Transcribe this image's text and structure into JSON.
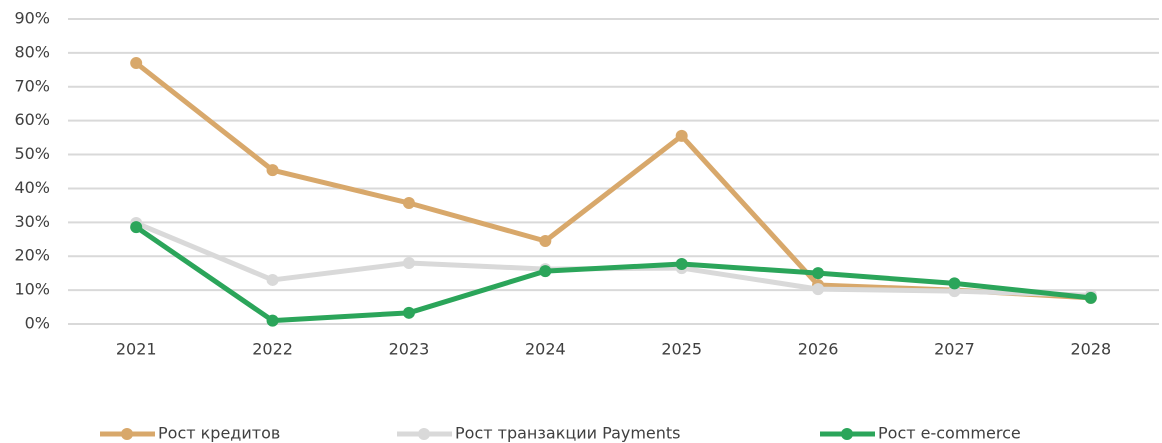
{
  "chart_data": {
    "type": "line",
    "categories": [
      "2021",
      "2022",
      "2023",
      "2024",
      "2025",
      "2026",
      "2027",
      "2028"
    ],
    "series": [
      {
        "name": "Рост кредитов",
        "color": "#d8a86b",
        "values": [
          77,
          45.4,
          35.7,
          24.5,
          55.5,
          11.5,
          10,
          7.7
        ]
      },
      {
        "name": "Рост транзакции Payments",
        "color": "#d9d9d9",
        "values": [
          29.8,
          13,
          18,
          16.2,
          16.5,
          10.3,
          9.7,
          8.5
        ]
      },
      {
        "name": "Рост e-commerce",
        "color": "#2ba55a",
        "values": [
          28.6,
          1,
          3.3,
          15.6,
          17.7,
          15,
          12,
          7.7
        ]
      }
    ],
    "ylim": [
      0,
      90
    ],
    "yticks": [
      {
        "value": 0,
        "label": "0%"
      },
      {
        "value": 10,
        "label": "10%"
      },
      {
        "value": 20,
        "label": "20%"
      },
      {
        "value": 30,
        "label": "30%"
      },
      {
        "value": 40,
        "label": "40%"
      },
      {
        "value": 50,
        "label": "50%"
      },
      {
        "value": 60,
        "label": "60%"
      },
      {
        "value": 70,
        "label": "70%"
      },
      {
        "value": 80,
        "label": "80%"
      },
      {
        "value": 90,
        "label": "90%"
      }
    ],
    "grid": true,
    "legend": "bottom"
  }
}
